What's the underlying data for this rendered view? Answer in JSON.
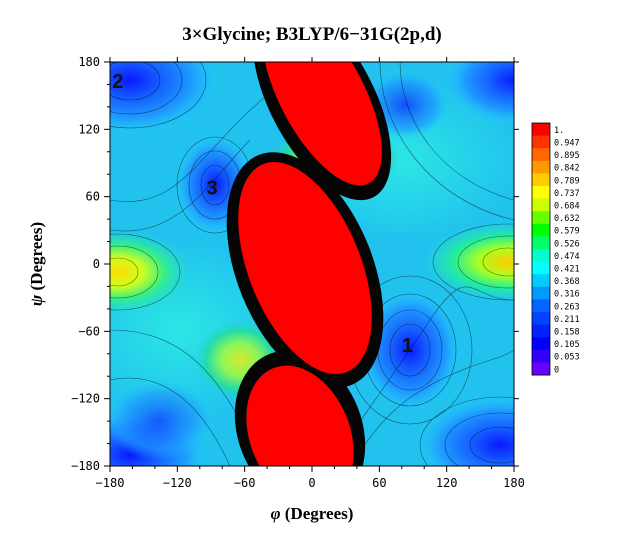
{
  "chart_data": {
    "type": "heatmap",
    "title": "3×Glycine; B3LYP/6−31G(2p,d)",
    "xlabel_symbol": "φ",
    "xlabel_text": " (Degrees)",
    "ylabel_symbol": "ψ",
    "ylabel_text": " (Degrees)",
    "xlim": [
      -180,
      180
    ],
    "ylim": [
      -180,
      180
    ],
    "x_ticks": [
      -180,
      -120,
      -60,
      0,
      60,
      120,
      180
    ],
    "y_ticks": [
      180,
      120,
      60,
      0,
      -60,
      -120,
      -180
    ],
    "x_tick_labels": [
      "−180",
      "−120",
      "−60",
      "0",
      "60",
      "120",
      "180"
    ],
    "y_tick_labels": [
      "180",
      "120",
      "60",
      "0",
      "−60",
      "−120",
      "−180"
    ],
    "colorbar": {
      "levels": [
        1,
        0.947,
        0.895,
        0.842,
        0.789,
        0.737,
        0.684,
        0.632,
        0.579,
        0.526,
        0.474,
        0.421,
        0.368,
        0.316,
        0.263,
        0.211,
        0.158,
        0.105,
        0.053,
        0
      ],
      "labels": [
        "1.",
        "0.947",
        "0.895",
        "0.842",
        "0.789",
        "0.737",
        "0.684",
        "0.632",
        "0.579",
        "0.526",
        "0.474",
        "0.421",
        "0.368",
        "0.316",
        "0.263",
        "0.211",
        "0.158",
        "0.105",
        "0.053",
        "0"
      ],
      "colors": [
        "#ff0000",
        "#ff3300",
        "#ff6600",
        "#ff9900",
        "#ffcc00",
        "#ffff00",
        "#ccff00",
        "#66ff00",
        "#00ff00",
        "#00ff66",
        "#00ffcc",
        "#00ffff",
        "#00ccff",
        "#0099ff",
        "#0066ff",
        "#0044ff",
        "#0022ff",
        "#0000ff",
        "#3300ff",
        "#6600ff"
      ]
    },
    "regions": [
      {
        "label": "1",
        "phi": 85,
        "psi": -72
      },
      {
        "label": "2",
        "phi": -173,
        "psi": 163
      },
      {
        "label": "3",
        "phi": -89,
        "psi": 68
      }
    ],
    "grid": false
  }
}
